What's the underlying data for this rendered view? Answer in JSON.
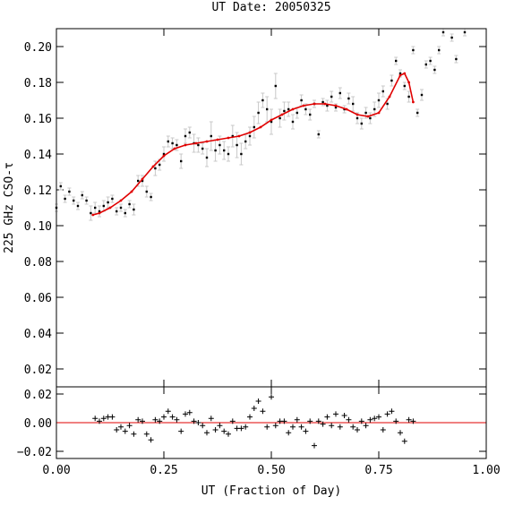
{
  "chart_data": [
    {
      "type": "scatter",
      "title": "UT Date: 20050325",
      "ylabel": "225 GHz CSO-τ",
      "xlim": [
        0,
        1
      ],
      "ylim": [
        0.01,
        0.21
      ],
      "yticks": [
        {
          "value": 0.02,
          "label": "0.02"
        },
        {
          "value": 0.04,
          "label": "0.04"
        },
        {
          "value": 0.06,
          "label": "0.06"
        },
        {
          "value": 0.08,
          "label": "0.08"
        },
        {
          "value": 0.1,
          "label": "0.10"
        },
        {
          "value": 0.12,
          "label": "0.12"
        },
        {
          "value": 0.14,
          "label": "0.14"
        },
        {
          "value": 0.16,
          "label": "0.16"
        },
        {
          "value": 0.18,
          "label": "0.18"
        },
        {
          "value": 0.2,
          "label": "0.20"
        }
      ],
      "series": [
        {
          "color": "#000000",
          "errorbar_color": "#c8c8c8",
          "x": [
            0,
            0.01,
            0.02,
            0.03,
            0.04,
            0.05,
            0.06,
            0.07,
            0.08,
            0.09,
            0.1,
            0.11,
            0.12,
            0.13,
            0.14,
            0.15,
            0.16,
            0.17,
            0.18,
            0.19,
            0.2,
            0.21,
            0.22,
            0.23,
            0.24,
            0.25,
            0.26,
            0.27,
            0.28,
            0.29,
            0.3,
            0.31,
            0.32,
            0.33,
            0.34,
            0.35,
            0.36,
            0.37,
            0.38,
            0.39,
            0.4,
            0.41,
            0.42,
            0.43,
            0.44,
            0.45,
            0.46,
            0.47,
            0.48,
            0.49,
            0.5,
            0.51,
            0.52,
            0.53,
            0.54,
            0.55,
            0.56,
            0.57,
            0.58,
            0.59,
            0.6,
            0.61,
            0.62,
            0.63,
            0.64,
            0.65,
            0.66,
            0.67,
            0.68,
            0.69,
            0.7,
            0.71,
            0.72,
            0.73,
            0.74,
            0.75,
            0.76,
            0.77,
            0.78,
            0.79,
            0.8,
            0.81,
            0.82,
            0.83,
            0.84,
            0.85,
            0.86,
            0.87,
            0.88,
            0.89,
            0.9,
            0.92,
            0.93,
            0.95
          ],
          "values": [
            0.11,
            0.122,
            0.115,
            0.119,
            0.114,
            0.111,
            0.117,
            0.114,
            0.107,
            0.11,
            0.108,
            0.111,
            0.113,
            0.115,
            0.108,
            0.11,
            0.107,
            0.112,
            0.109,
            0.125,
            0.125,
            0.119,
            0.116,
            0.132,
            0.134,
            0.14,
            0.147,
            0.146,
            0.145,
            0.136,
            0.15,
            0.152,
            0.146,
            0.145,
            0.143,
            0.138,
            0.15,
            0.142,
            0.145,
            0.142,
            0.14,
            0.15,
            0.145,
            0.14,
            0.147,
            0.15,
            0.155,
            0.163,
            0.17,
            0.165,
            0.158,
            0.178,
            0.16,
            0.164,
            0.165,
            0.158,
            0.163,
            0.17,
            0.165,
            0.162,
            0.168,
            0.151,
            0.169,
            0.167,
            0.172,
            0.166,
            0.174,
            0.165,
            0.171,
            0.168,
            0.16,
            0.157,
            0.163,
            0.16,
            0.165,
            0.17,
            0.175,
            0.168,
            0.181,
            0.192,
            0.185,
            0.178,
            0.172,
            0.198,
            0.163,
            0.173,
            0.19,
            0.192,
            0.187,
            0.198,
            0.208,
            0.205,
            0.193,
            0.208
          ],
          "errors": [
            0.002,
            0.002,
            0.002,
            0.002,
            0.002,
            0.002,
            0.002,
            0.002,
            0.004,
            0.003,
            0.003,
            0.003,
            0.003,
            0.002,
            0.002,
            0.002,
            0.002,
            0.002,
            0.003,
            0.003,
            0.003,
            0.003,
            0.002,
            0.004,
            0.003,
            0.004,
            0.003,
            0.003,
            0.003,
            0.004,
            0.004,
            0.003,
            0.005,
            0.004,
            0.003,
            0.005,
            0.008,
            0.006,
            0.005,
            0.005,
            0.004,
            0.006,
            0.007,
            0.006,
            0.004,
            0.005,
            0.006,
            0.006,
            0.004,
            0.007,
            0.007,
            0.007,
            0.005,
            0.005,
            0.004,
            0.004,
            0.003,
            0.003,
            0.003,
            0.003,
            0.002,
            0.002,
            0.002,
            0.003,
            0.003,
            0.002,
            0.003,
            0.002,
            0.003,
            0.004,
            0.003,
            0.003,
            0.003,
            0.003,
            0.004,
            0.004,
            0.003,
            0.003,
            0.003,
            0.002,
            0.002,
            0.002,
            0.003,
            0.002,
            0.002,
            0.003,
            0.002,
            0.002,
            0.002,
            0.002,
            0.002,
            0.002,
            0.002,
            0.002
          ]
        },
        {
          "color": "#e00000",
          "style": "line",
          "x": [
            0.085,
            0.1,
            0.125,
            0.15,
            0.175,
            0.2,
            0.225,
            0.25,
            0.275,
            0.3,
            0.325,
            0.35,
            0.375,
            0.4,
            0.425,
            0.45,
            0.475,
            0.5,
            0.525,
            0.55,
            0.575,
            0.6,
            0.625,
            0.65,
            0.675,
            0.7,
            0.725,
            0.75,
            0.775,
            0.8,
            0.81,
            0.82,
            0.83
          ],
          "values": [
            0.106,
            0.107,
            0.11,
            0.114,
            0.119,
            0.126,
            0.133,
            0.139,
            0.143,
            0.145,
            0.146,
            0.147,
            0.148,
            0.149,
            0.15,
            0.152,
            0.155,
            0.159,
            0.162,
            0.165,
            0.167,
            0.168,
            0.168,
            0.167,
            0.165,
            0.162,
            0.161,
            0.163,
            0.172,
            0.184,
            0.185,
            0.18,
            0.169
          ]
        }
      ]
    },
    {
      "type": "residual",
      "xlabel": "UT (Fraction of Day)",
      "xlim": [
        0,
        1
      ],
      "ylim": [
        -0.025,
        0.025
      ],
      "xticks": [
        {
          "value": 0,
          "label": "0.00"
        },
        {
          "value": 0.25,
          "label": "0.25"
        },
        {
          "value": 0.5,
          "label": "0.50"
        },
        {
          "value": 0.75,
          "label": "0.75"
        },
        {
          "value": 1,
          "label": "1.00"
        }
      ],
      "yticks": [
        {
          "value": -0.02,
          "label": "−0.02"
        },
        {
          "value": 0,
          "label": "0.00"
        },
        {
          "value": 0.02,
          "label": "0.02"
        }
      ],
      "reference_line": 0,
      "reference_color": "#e00000",
      "series": [
        {
          "color": "#000000",
          "x": [
            0.09,
            0.1,
            0.11,
            0.12,
            0.13,
            0.14,
            0.15,
            0.16,
            0.17,
            0.18,
            0.19,
            0.2,
            0.21,
            0.22,
            0.23,
            0.24,
            0.25,
            0.26,
            0.27,
            0.28,
            0.29,
            0.3,
            0.31,
            0.32,
            0.33,
            0.34,
            0.35,
            0.36,
            0.37,
            0.38,
            0.39,
            0.4,
            0.41,
            0.42,
            0.43,
            0.44,
            0.45,
            0.46,
            0.47,
            0.48,
            0.49,
            0.5,
            0.51,
            0.52,
            0.53,
            0.54,
            0.55,
            0.56,
            0.57,
            0.58,
            0.59,
            0.6,
            0.61,
            0.62,
            0.63,
            0.64,
            0.65,
            0.66,
            0.67,
            0.68,
            0.69,
            0.7,
            0.71,
            0.72,
            0.73,
            0.74,
            0.75,
            0.76,
            0.77,
            0.78,
            0.79,
            0.8,
            0.81,
            0.82,
            0.83
          ],
          "values": [
            0.003,
            0.001,
            0.003,
            0.004,
            0.004,
            -0.005,
            -0.003,
            -0.006,
            -0.002,
            -0.008,
            0.002,
            0.001,
            -0.008,
            -0.012,
            0.002,
            0.001,
            0.004,
            0.008,
            0.004,
            0.002,
            -0.006,
            0.006,
            0.007,
            0.001,
            0,
            -0.002,
            -0.007,
            0.003,
            -0.005,
            -0.002,
            -0.006,
            -0.008,
            0.001,
            -0.004,
            -0.004,
            -0.003,
            0.004,
            0.01,
            0.015,
            0.008,
            -0.003,
            0.018,
            -0.002,
            0.001,
            0.001,
            -0.007,
            -0.003,
            0.002,
            -0.003,
            -0.006,
            0.001,
            -0.016,
            0.001,
            -0.001,
            0.004,
            -0.002,
            0.006,
            -0.003,
            0.005,
            0.002,
            -0.003,
            -0.005,
            0.001,
            -0.002,
            0.002,
            0.003,
            0.004,
            -0.005,
            0.006,
            0.008,
            0.001,
            -0.007,
            -0.013,
            0.002,
            0.001
          ]
        }
      ]
    }
  ]
}
